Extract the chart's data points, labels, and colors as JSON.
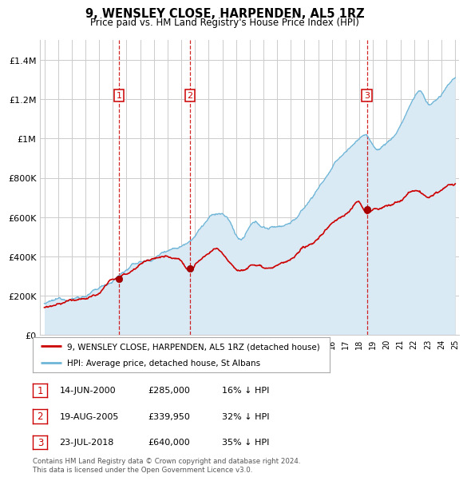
{
  "title": "9, WENSLEY CLOSE, HARPENDEN, AL5 1RZ",
  "subtitle": "Price paid vs. HM Land Registry's House Price Index (HPI)",
  "ylim": [
    0,
    1500000
  ],
  "yticks": [
    0,
    200000,
    400000,
    600000,
    800000,
    1000000,
    1200000,
    1400000
  ],
  "ytick_labels": [
    "£0",
    "£200K",
    "£400K",
    "£600K",
    "£800K",
    "£1M",
    "£1.2M",
    "£1.4M"
  ],
  "sale_color": "#cc0000",
  "hpi_color": "#6eb5d8",
  "hpi_fill_color": "#daeaf5",
  "background_color": "#ffffff",
  "grid_color": "#cccccc",
  "sales": [
    {
      "year": 2000.46,
      "price": 285000,
      "label": "1",
      "date_str": "14-JUN-2000",
      "price_str": "£285,000",
      "hpi_str": "16% ↓ HPI"
    },
    {
      "year": 2005.63,
      "price": 339950,
      "label": "2",
      "date_str": "19-AUG-2005",
      "price_str": "£339,950",
      "hpi_str": "32% ↓ HPI"
    },
    {
      "year": 2018.55,
      "price": 640000,
      "label": "3",
      "date_str": "23-JUL-2018",
      "price_str": "£640,000",
      "hpi_str": "35% ↓ HPI"
    }
  ],
  "legend_line1": "9, WENSLEY CLOSE, HARPENDEN, AL5 1RZ (detached house)",
  "legend_line2": "HPI: Average price, detached house, St Albans",
  "footnote": "Contains HM Land Registry data © Crown copyright and database right 2024.\nThis data is licensed under the Open Government Licence v3.0.",
  "x_start_year": 1995,
  "x_end_year": 2025
}
